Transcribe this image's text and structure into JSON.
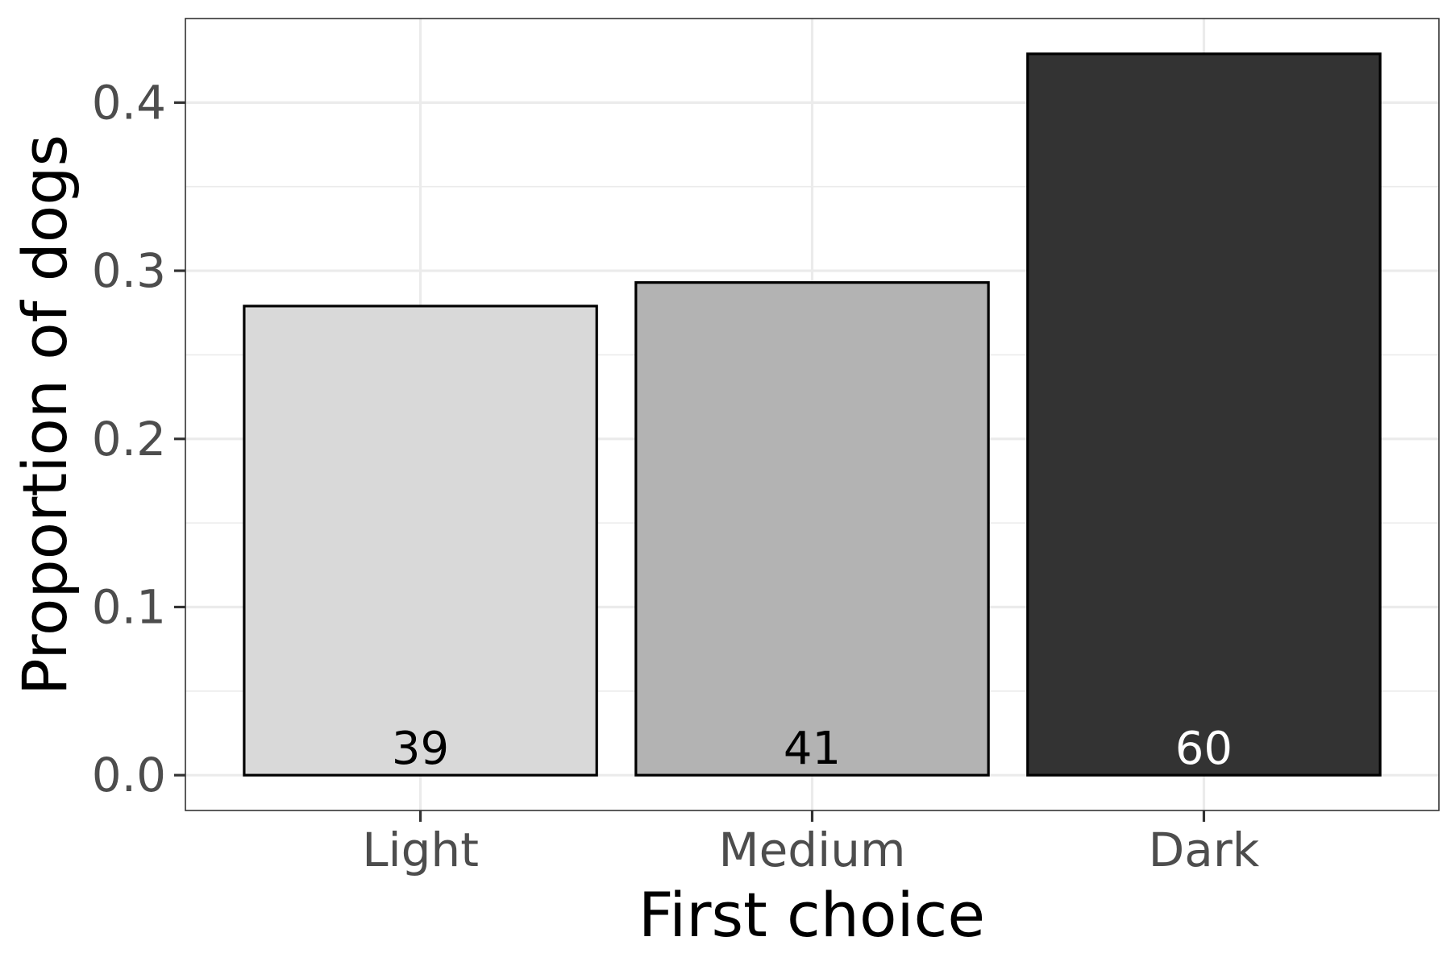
{
  "chart_data": {
    "type": "bar",
    "xlabel": "First choice",
    "ylabel": "Proportion of dogs",
    "categories": [
      "Light",
      "Medium",
      "Dark"
    ],
    "values": [
      0.279,
      0.293,
      0.429
    ],
    "bar_labels": [
      "39",
      "41",
      "60"
    ],
    "bar_colors": [
      "#d9d9d9",
      "#b3b3b3",
      "#333333"
    ],
    "bar_label_colors": [
      "#000000",
      "#000000",
      "#ffffff"
    ],
    "ylim": [
      -0.021,
      0.45
    ],
    "yticks": [
      0.0,
      0.1,
      0.2,
      0.3,
      0.4
    ],
    "ytick_labels": [
      "0.0",
      "0.1",
      "0.2",
      "0.3",
      "0.4"
    ],
    "grid": true,
    "legend": "none"
  }
}
